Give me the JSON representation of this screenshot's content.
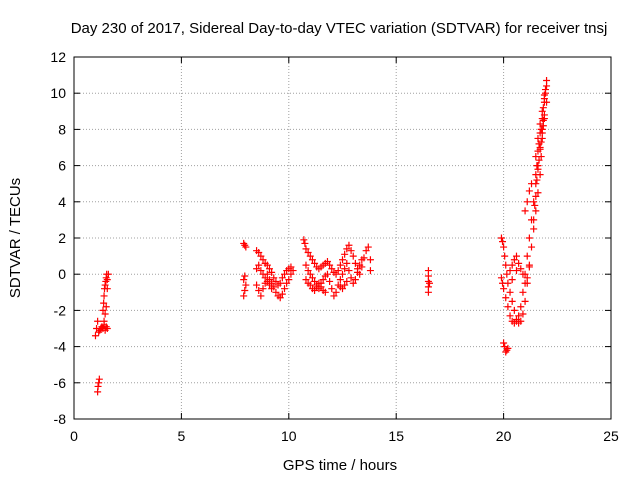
{
  "chart_data": {
    "type": "scatter",
    "title": "Day 230 of 2017, Sidereal Day-to-day VTEC variation (SDTVAR) for receiver tnsj",
    "xlabel": "GPS time / hours",
    "ylabel": "SDTVAR / TECUs",
    "xlim": [
      0,
      25
    ],
    "ylim": [
      -8,
      12
    ],
    "xticks": [
      0,
      5,
      10,
      15,
      20,
      25
    ],
    "yticks": [
      -8,
      -6,
      -4,
      -2,
      0,
      2,
      4,
      6,
      8,
      10,
      12
    ],
    "grid": true,
    "marker": "+",
    "color": "#ff0000",
    "series": [
      {
        "values": [
          [
            1.0,
            -3.4
          ],
          [
            1.05,
            -3.0
          ],
          [
            1.1,
            -2.6
          ],
          [
            1.15,
            -3.2
          ],
          [
            1.2,
            -3.1
          ],
          [
            1.25,
            -3.0
          ],
          [
            1.3,
            -2.9
          ],
          [
            1.35,
            -3.0
          ],
          [
            1.4,
            -2.8
          ],
          [
            1.45,
            -3.1
          ],
          [
            1.5,
            -2.9
          ],
          [
            1.55,
            -3.0
          ],
          [
            1.1,
            -6.5
          ],
          [
            1.12,
            -6.2
          ],
          [
            1.15,
            -6.0
          ],
          [
            1.18,
            -5.8
          ],
          [
            1.35,
            -2.0
          ],
          [
            1.38,
            -1.6
          ],
          [
            1.4,
            -1.2
          ],
          [
            1.42,
            -0.8
          ],
          [
            1.45,
            -0.6
          ],
          [
            1.48,
            -0.4
          ],
          [
            1.5,
            -0.2
          ],
          [
            1.52,
            0.0
          ],
          [
            1.55,
            -0.3
          ],
          [
            1.45,
            -2.2
          ],
          [
            1.4,
            -2.6
          ],
          [
            1.5,
            -1.8
          ],
          [
            1.55,
            -0.8
          ],
          [
            1.6,
            0.0
          ],
          [
            7.9,
            1.7
          ],
          [
            7.95,
            1.6
          ],
          [
            8.0,
            1.5
          ],
          [
            7.9,
            -0.3
          ],
          [
            7.95,
            -0.1
          ],
          [
            7.9,
            -1.2
          ],
          [
            7.95,
            -0.9
          ],
          [
            8.0,
            -0.6
          ],
          [
            8.5,
            1.3
          ],
          [
            8.6,
            1.2
          ],
          [
            8.7,
            1.0
          ],
          [
            8.8,
            0.8
          ],
          [
            8.9,
            0.6
          ],
          [
            9.0,
            0.5
          ],
          [
            9.1,
            0.3
          ],
          [
            9.2,
            0.1
          ],
          [
            9.3,
            -0.2
          ],
          [
            9.4,
            -0.4
          ],
          [
            9.5,
            -0.6
          ],
          [
            9.6,
            -0.5
          ],
          [
            9.7,
            -0.2
          ],
          [
            9.8,
            0.0
          ],
          [
            9.9,
            0.2
          ],
          [
            10.0,
            0.3
          ],
          [
            10.1,
            0.4
          ],
          [
            10.2,
            0.2
          ],
          [
            8.5,
            0.3
          ],
          [
            8.6,
            0.5
          ],
          [
            8.7,
            0.2
          ],
          [
            8.8,
            0.0
          ],
          [
            8.9,
            -0.2
          ],
          [
            9.0,
            0.0
          ],
          [
            9.1,
            -0.3
          ],
          [
            9.2,
            -0.5
          ],
          [
            9.3,
            -0.7
          ],
          [
            9.4,
            -1.0
          ],
          [
            9.5,
            -1.2
          ],
          [
            9.6,
            -1.3
          ],
          [
            9.7,
            -1.1
          ],
          [
            9.8,
            -0.8
          ],
          [
            9.9,
            -0.5
          ],
          [
            10.0,
            -0.3
          ],
          [
            10.1,
            0.0
          ],
          [
            8.5,
            -0.6
          ],
          [
            8.6,
            -0.9
          ],
          [
            8.7,
            -1.2
          ],
          [
            8.8,
            -0.8
          ],
          [
            8.9,
            -0.5
          ],
          [
            9.0,
            -0.4
          ],
          [
            9.1,
            -0.6
          ],
          [
            9.2,
            -0.8
          ],
          [
            10.7,
            1.9
          ],
          [
            10.75,
            1.7
          ],
          [
            10.8,
            1.4
          ],
          [
            10.9,
            1.2
          ],
          [
            11.0,
            1.0
          ],
          [
            11.1,
            0.8
          ],
          [
            11.2,
            0.6
          ],
          [
            11.3,
            0.4
          ],
          [
            11.4,
            0.3
          ],
          [
            11.5,
            0.4
          ],
          [
            11.6,
            0.5
          ],
          [
            11.7,
            0.6
          ],
          [
            11.8,
            0.7
          ],
          [
            11.9,
            0.5
          ],
          [
            12.0,
            0.3
          ],
          [
            12.1,
            0.1
          ],
          [
            12.2,
            0.0
          ],
          [
            12.3,
            0.2
          ],
          [
            12.4,
            0.5
          ],
          [
            12.5,
            0.8
          ],
          [
            12.6,
            1.1
          ],
          [
            12.7,
            1.4
          ],
          [
            12.8,
            1.6
          ],
          [
            12.9,
            1.3
          ],
          [
            13.0,
            1.0
          ],
          [
            13.1,
            0.6
          ],
          [
            13.2,
            0.3
          ],
          [
            13.3,
            0.0
          ],
          [
            13.4,
            0.4
          ],
          [
            13.5,
            0.9
          ],
          [
            13.6,
            1.3
          ],
          [
            13.7,
            1.5
          ],
          [
            13.8,
            0.8
          ],
          [
            13.8,
            0.2
          ],
          [
            10.8,
            0.5
          ],
          [
            10.9,
            0.2
          ],
          [
            11.0,
            0.0
          ],
          [
            11.1,
            -0.2
          ],
          [
            11.2,
            -0.4
          ],
          [
            11.3,
            -0.6
          ],
          [
            11.4,
            -0.8
          ],
          [
            11.5,
            -0.5
          ],
          [
            11.6,
            -0.3
          ],
          [
            11.7,
            -0.1
          ],
          [
            11.8,
            0.0
          ],
          [
            11.9,
            -0.4
          ],
          [
            12.0,
            -0.8
          ],
          [
            12.1,
            -1.2
          ],
          [
            12.2,
            -1.0
          ],
          [
            12.3,
            -0.6
          ],
          [
            12.4,
            -0.3
          ],
          [
            12.5,
            0.0
          ],
          [
            12.6,
            0.3
          ],
          [
            12.7,
            0.6
          ],
          [
            12.8,
            0.2
          ],
          [
            12.9,
            -0.2
          ],
          [
            13.0,
            -0.5
          ],
          [
            13.1,
            -0.3
          ],
          [
            13.2,
            0.1
          ],
          [
            13.3,
            0.5
          ],
          [
            13.4,
            0.8
          ],
          [
            10.8,
            -0.3
          ],
          [
            10.9,
            -0.5
          ],
          [
            11.0,
            -0.6
          ],
          [
            11.1,
            -0.8
          ],
          [
            11.2,
            -0.9
          ],
          [
            11.3,
            -0.7
          ],
          [
            11.4,
            -0.5
          ],
          [
            11.5,
            -0.7
          ],
          [
            11.6,
            -0.9
          ],
          [
            11.7,
            -1.0
          ],
          [
            12.4,
            -0.7
          ],
          [
            12.5,
            -0.8
          ],
          [
            12.6,
            -0.6
          ],
          [
            12.7,
            -0.4
          ],
          [
            16.5,
            0.2
          ],
          [
            16.5,
            -0.1
          ],
          [
            16.5,
            -0.4
          ],
          [
            16.5,
            -0.7
          ],
          [
            16.5,
            -1.0
          ],
          [
            16.55,
            -0.5
          ],
          [
            19.9,
            2.0
          ],
          [
            19.95,
            1.8
          ],
          [
            20.0,
            1.5
          ],
          [
            20.05,
            1.0
          ],
          [
            20.1,
            0.5
          ],
          [
            20.15,
            0.0
          ],
          [
            20.2,
            -0.5
          ],
          [
            20.3,
            -1.0
          ],
          [
            20.4,
            -1.5
          ],
          [
            20.5,
            -2.0
          ],
          [
            20.6,
            -2.5
          ],
          [
            20.7,
            -2.7
          ],
          [
            20.8,
            -2.6
          ],
          [
            20.9,
            -2.2
          ],
          [
            21.0,
            -1.5
          ],
          [
            21.1,
            -0.5
          ],
          [
            21.2,
            0.5
          ],
          [
            21.3,
            1.5
          ],
          [
            21.4,
            2.5
          ],
          [
            21.5,
            3.5
          ],
          [
            21.6,
            4.5
          ],
          [
            21.7,
            5.5
          ],
          [
            21.75,
            6.5
          ],
          [
            21.8,
            7.5
          ],
          [
            21.85,
            8.5
          ],
          [
            21.9,
            9.5
          ],
          [
            21.95,
            10.2
          ],
          [
            22.0,
            10.7
          ],
          [
            19.9,
            -0.2
          ],
          [
            19.95,
            -0.5
          ],
          [
            20.0,
            -0.8
          ],
          [
            20.1,
            -1.3
          ],
          [
            20.2,
            -1.8
          ],
          [
            20.3,
            -2.3
          ],
          [
            20.4,
            -2.6
          ],
          [
            20.5,
            -2.7
          ],
          [
            20.6,
            -2.6
          ],
          [
            20.7,
            -2.3
          ],
          [
            20.8,
            -1.8
          ],
          [
            20.9,
            -1.0
          ],
          [
            21.0,
            0.0
          ],
          [
            21.1,
            1.0
          ],
          [
            21.2,
            2.0
          ],
          [
            21.3,
            3.0
          ],
          [
            21.4,
            4.0
          ],
          [
            21.5,
            5.0
          ],
          [
            21.6,
            6.0
          ],
          [
            21.7,
            7.0
          ],
          [
            21.8,
            8.0
          ],
          [
            21.9,
            8.8
          ],
          [
            22.0,
            9.5
          ],
          [
            20.0,
            -3.8
          ],
          [
            20.05,
            -4.0
          ],
          [
            20.1,
            -4.3
          ],
          [
            20.15,
            -4.2
          ],
          [
            20.2,
            -4.1
          ],
          [
            20.3,
            0.2
          ],
          [
            20.4,
            0.5
          ],
          [
            20.5,
            0.8
          ],
          [
            20.6,
            1.0
          ],
          [
            20.7,
            0.6
          ],
          [
            20.8,
            0.3
          ],
          [
            20.9,
            0.0
          ],
          [
            21.0,
            -0.5
          ],
          [
            21.1,
            -0.2
          ],
          [
            21.2,
            0.4
          ],
          [
            20.4,
            -0.3
          ],
          [
            20.6,
            0.2
          ],
          [
            21.0,
            3.5
          ],
          [
            21.1,
            4.0
          ],
          [
            21.2,
            4.6
          ],
          [
            21.3,
            5.0
          ],
          [
            21.5,
            6.5
          ],
          [
            21.6,
            7.5
          ],
          [
            21.7,
            8.3
          ],
          [
            21.8,
            9.0
          ],
          [
            21.9,
            9.9
          ],
          [
            22.0,
            10.4
          ],
          [
            21.5,
            5.5
          ],
          [
            21.55,
            6.0
          ],
          [
            21.6,
            6.8
          ],
          [
            21.65,
            7.2
          ],
          [
            21.7,
            7.8
          ],
          [
            21.75,
            8.0
          ],
          [
            21.8,
            8.6
          ],
          [
            21.85,
            9.2
          ],
          [
            21.9,
            9.7
          ],
          [
            21.95,
            10.0
          ],
          [
            21.4,
            3.0
          ],
          [
            21.45,
            3.8
          ],
          [
            21.5,
            4.3
          ],
          [
            21.55,
            5.2
          ],
          [
            21.6,
            5.8
          ],
          [
            21.65,
            6.3
          ],
          [
            21.7,
            6.9
          ],
          [
            21.75,
            7.3
          ],
          [
            21.8,
            7.8
          ],
          [
            21.85,
            8.2
          ],
          [
            21.9,
            8.6
          ]
        ]
      }
    ]
  }
}
